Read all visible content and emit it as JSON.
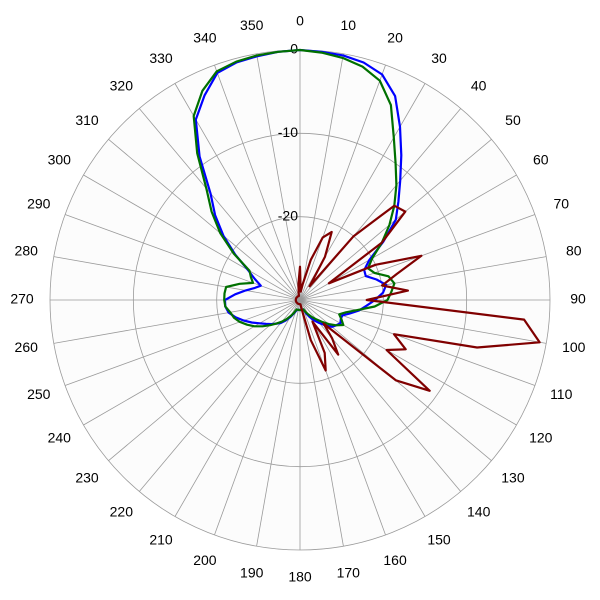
{
  "chart_data": {
    "type": "polar",
    "rlim": [
      -30,
      0
    ],
    "rticks": [
      0,
      -10,
      -20
    ],
    "thetaticks": [
      0,
      10,
      20,
      30,
      40,
      50,
      60,
      70,
      80,
      90,
      100,
      110,
      120,
      130,
      140,
      150,
      160,
      170,
      180,
      190,
      200,
      210,
      220,
      230,
      240,
      250,
      260,
      270,
      280,
      290,
      300,
      310,
      320,
      330,
      340,
      350
    ],
    "grid": true,
    "theta": [
      0,
      5,
      10,
      15,
      20,
      25,
      30,
      35,
      40,
      45,
      50,
      55,
      60,
      65,
      70,
      75,
      80,
      85,
      90,
      95,
      100,
      105,
      110,
      115,
      120,
      125,
      130,
      135,
      140,
      145,
      150,
      155,
      160,
      165,
      170,
      175,
      180,
      185,
      190,
      195,
      200,
      205,
      210,
      215,
      220,
      225,
      230,
      235,
      240,
      245,
      250,
      255,
      260,
      265,
      270,
      275,
      280,
      285,
      290,
      295,
      300,
      305,
      310,
      315,
      320,
      325,
      330,
      335,
      340,
      345,
      350,
      355
    ],
    "series": [
      {
        "color": "#0000ff",
        "values": [
          0,
          -0.1,
          -0.2,
          -0.5,
          -1.2,
          -3,
          -6,
          -8.8,
          -11.3,
          -13.3,
          -15,
          -17.8,
          -20.4,
          -21.5,
          -21.6,
          -20.5,
          -19.5,
          -20,
          -21,
          -22,
          -22.8,
          -23.8,
          -24.6,
          -24.6,
          -24.4,
          -24.7,
          -25,
          -25.7,
          -26.4,
          -27,
          -27.6,
          -28.2,
          -28.8,
          -28.8,
          -28.8,
          -28.8,
          -28.8,
          -28.8,
          -28.8,
          -28.8,
          -28.6,
          -28.2,
          -27.6,
          -27,
          -26.4,
          -26,
          -25.5,
          -25,
          -24.4,
          -23.6,
          -22.8,
          -22,
          -21.3,
          -21,
          -21,
          -22.2,
          -23.4,
          -24.4,
          -25,
          -24,
          -22.8,
          -20.5,
          -18,
          -15.6,
          -13.3,
          -9,
          -5,
          -2.9,
          -1,
          -0.5,
          -0.3,
          -0.1
        ]
      },
      {
        "color": "#007000",
        "values": [
          0,
          -0.2,
          -0.5,
          -1,
          -2,
          -4.2,
          -7.5,
          -10,
          -12,
          -14,
          -16,
          -18,
          -20,
          -21,
          -20.5,
          -19,
          -18.5,
          -19,
          -19.5,
          -21,
          -23,
          -24.3,
          -25,
          -24.5,
          -24,
          -24.7,
          -25.5,
          -26.3,
          -27,
          -27.5,
          -28,
          -28.4,
          -28.8,
          -28.8,
          -28.8,
          -28.8,
          -28.8,
          -28.8,
          -28.8,
          -28.8,
          -28.8,
          -28.3,
          -27.8,
          -27.2,
          -26.6,
          -26,
          -25.3,
          -24.5,
          -23.7,
          -23,
          -22.3,
          -21.8,
          -21.5,
          -21,
          -20.9,
          -20.9,
          -21,
          -22.5,
          -24,
          -23.5,
          -23,
          -20.3,
          -17.5,
          -15,
          -12.5,
          -8.5,
          -4.5,
          -2.3,
          -0.8,
          -0.4,
          -0.2,
          -0.1
        ]
      },
      {
        "color": "#800000",
        "values": [
          -26,
          -29,
          -28,
          -25,
          -22,
          -21,
          -24,
          -28,
          -20,
          -14,
          -13.5,
          -18,
          -26,
          -20,
          -14.5,
          -18,
          -20,
          -17,
          -22,
          -3,
          -0.8,
          -8,
          -18,
          -16,
          -18,
          -11,
          -15,
          -26,
          -24,
          -22,
          -27,
          -23,
          -21,
          -25,
          -29,
          -29.5,
          -29.5,
          -29.5,
          -29.5,
          -29.5,
          -29.5,
          -29.5,
          -29.5,
          -29.5,
          -29.5,
          -29.5,
          -29.5,
          -29.5,
          -29.5,
          -29.5,
          -29.5,
          -29.5,
          -29.5,
          -29.5,
          -29.5,
          -29.5,
          -29.5,
          -29.5,
          -29.5,
          -29.5,
          -29.5,
          -29.5,
          -29.5,
          -29.5,
          -29.5,
          -29.5,
          -29.5,
          -29.5,
          -29.5,
          -29.5,
          -29,
          -28
        ]
      }
    ]
  }
}
